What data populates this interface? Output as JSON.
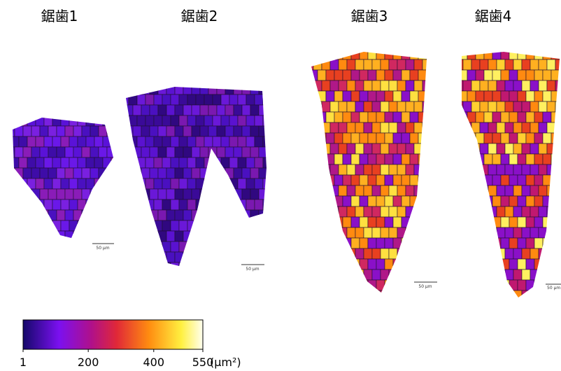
{
  "panels": [
    {
      "label": "鋸歯1",
      "scale_bar": "50 µm"
    },
    {
      "label": "鋸歯2",
      "scale_bar": "50 µm"
    },
    {
      "label": "鋸歯3",
      "scale_bar": "50 µm"
    },
    {
      "label": "鋸歯4",
      "scale_bar": "50 µm"
    }
  ],
  "colorbar": {
    "range": [
      1,
      550
    ],
    "ticks": [
      1,
      200,
      400,
      550
    ],
    "unit": "(µm²)"
  }
}
